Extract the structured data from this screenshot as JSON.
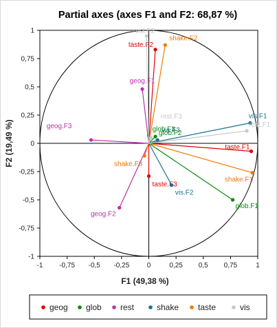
{
  "chart_data": {
    "type": "scatter",
    "title": "Partial axes (axes F1 and F2: 68,87 %)",
    "xlabel": "F1 (49,38 %)",
    "ylabel": "F2 (19,49 %)",
    "xlim": [
      -1,
      1
    ],
    "ylim": [
      -1,
      1
    ],
    "x_ticks": [
      "-1",
      "-0,75",
      "-0,5",
      "-0,25",
      "0",
      "0,25",
      "0,5",
      "0,75",
      "1"
    ],
    "y_ticks": [
      "1",
      "0,75",
      "0,5",
      "0,25",
      "0",
      "-0,25",
      "-0,5",
      "-0,75",
      "-1"
    ],
    "correlation_circle": true,
    "legend_position": "bottom",
    "series": [
      {
        "name": "geog",
        "color": "#e00000",
        "points": [
          {
            "label": "taste.F1",
            "x": 0.94,
            "y": -0.07
          },
          {
            "label": "taste.F2",
            "x": 0.06,
            "y": 0.83
          },
          {
            "label": "taste.F3",
            "x": 0.0,
            "y": -0.29
          }
        ]
      },
      {
        "name": "glob",
        "color": "#0a8a0a",
        "points": [
          {
            "label": "glob.F1",
            "x": 0.77,
            "y": -0.5
          },
          {
            "label": "glob.F2",
            "x": 0.06,
            "y": 0.06
          },
          {
            "label": "glob.F3",
            "x": 0.0,
            "y": 0.07
          }
        ]
      },
      {
        "name": "rest",
        "color": "#bb30a8",
        "points": [
          {
            "label": "geog.F1",
            "x": -0.06,
            "y": 0.48
          },
          {
            "label": "geog.F2",
            "x": -0.27,
            "y": -0.57
          },
          {
            "label": "geog.F3",
            "x": -0.53,
            "y": 0.03
          }
        ]
      },
      {
        "name": "shake",
        "color": "#1a6f8f",
        "points": [
          {
            "label": "vis.F1",
            "x": 0.93,
            "y": 0.18
          },
          {
            "label": "vis.F2",
            "x": 0.21,
            "y": -0.37
          },
          {
            "label": "vis.F3",
            "x": 0.08,
            "y": 0.03
          }
        ]
      },
      {
        "name": "taste",
        "color": "#f07800",
        "points": [
          {
            "label": "shake.F1",
            "x": 0.95,
            "y": -0.26
          },
          {
            "label": "shake.F2",
            "x": 0.15,
            "y": 0.87
          },
          {
            "label": "shake.F3",
            "x": -0.04,
            "y": -0.11
          }
        ]
      },
      {
        "name": "vis",
        "color": "#c8c8c8",
        "points": [
          {
            "label": "rest.F1",
            "x": 0.9,
            "y": 0.11
          },
          {
            "label": "rest.F2",
            "x": -0.02,
            "y": 0.95
          },
          {
            "label": "rest.F3",
            "x": 0.02,
            "y": 0.05
          }
        ]
      }
    ]
  }
}
